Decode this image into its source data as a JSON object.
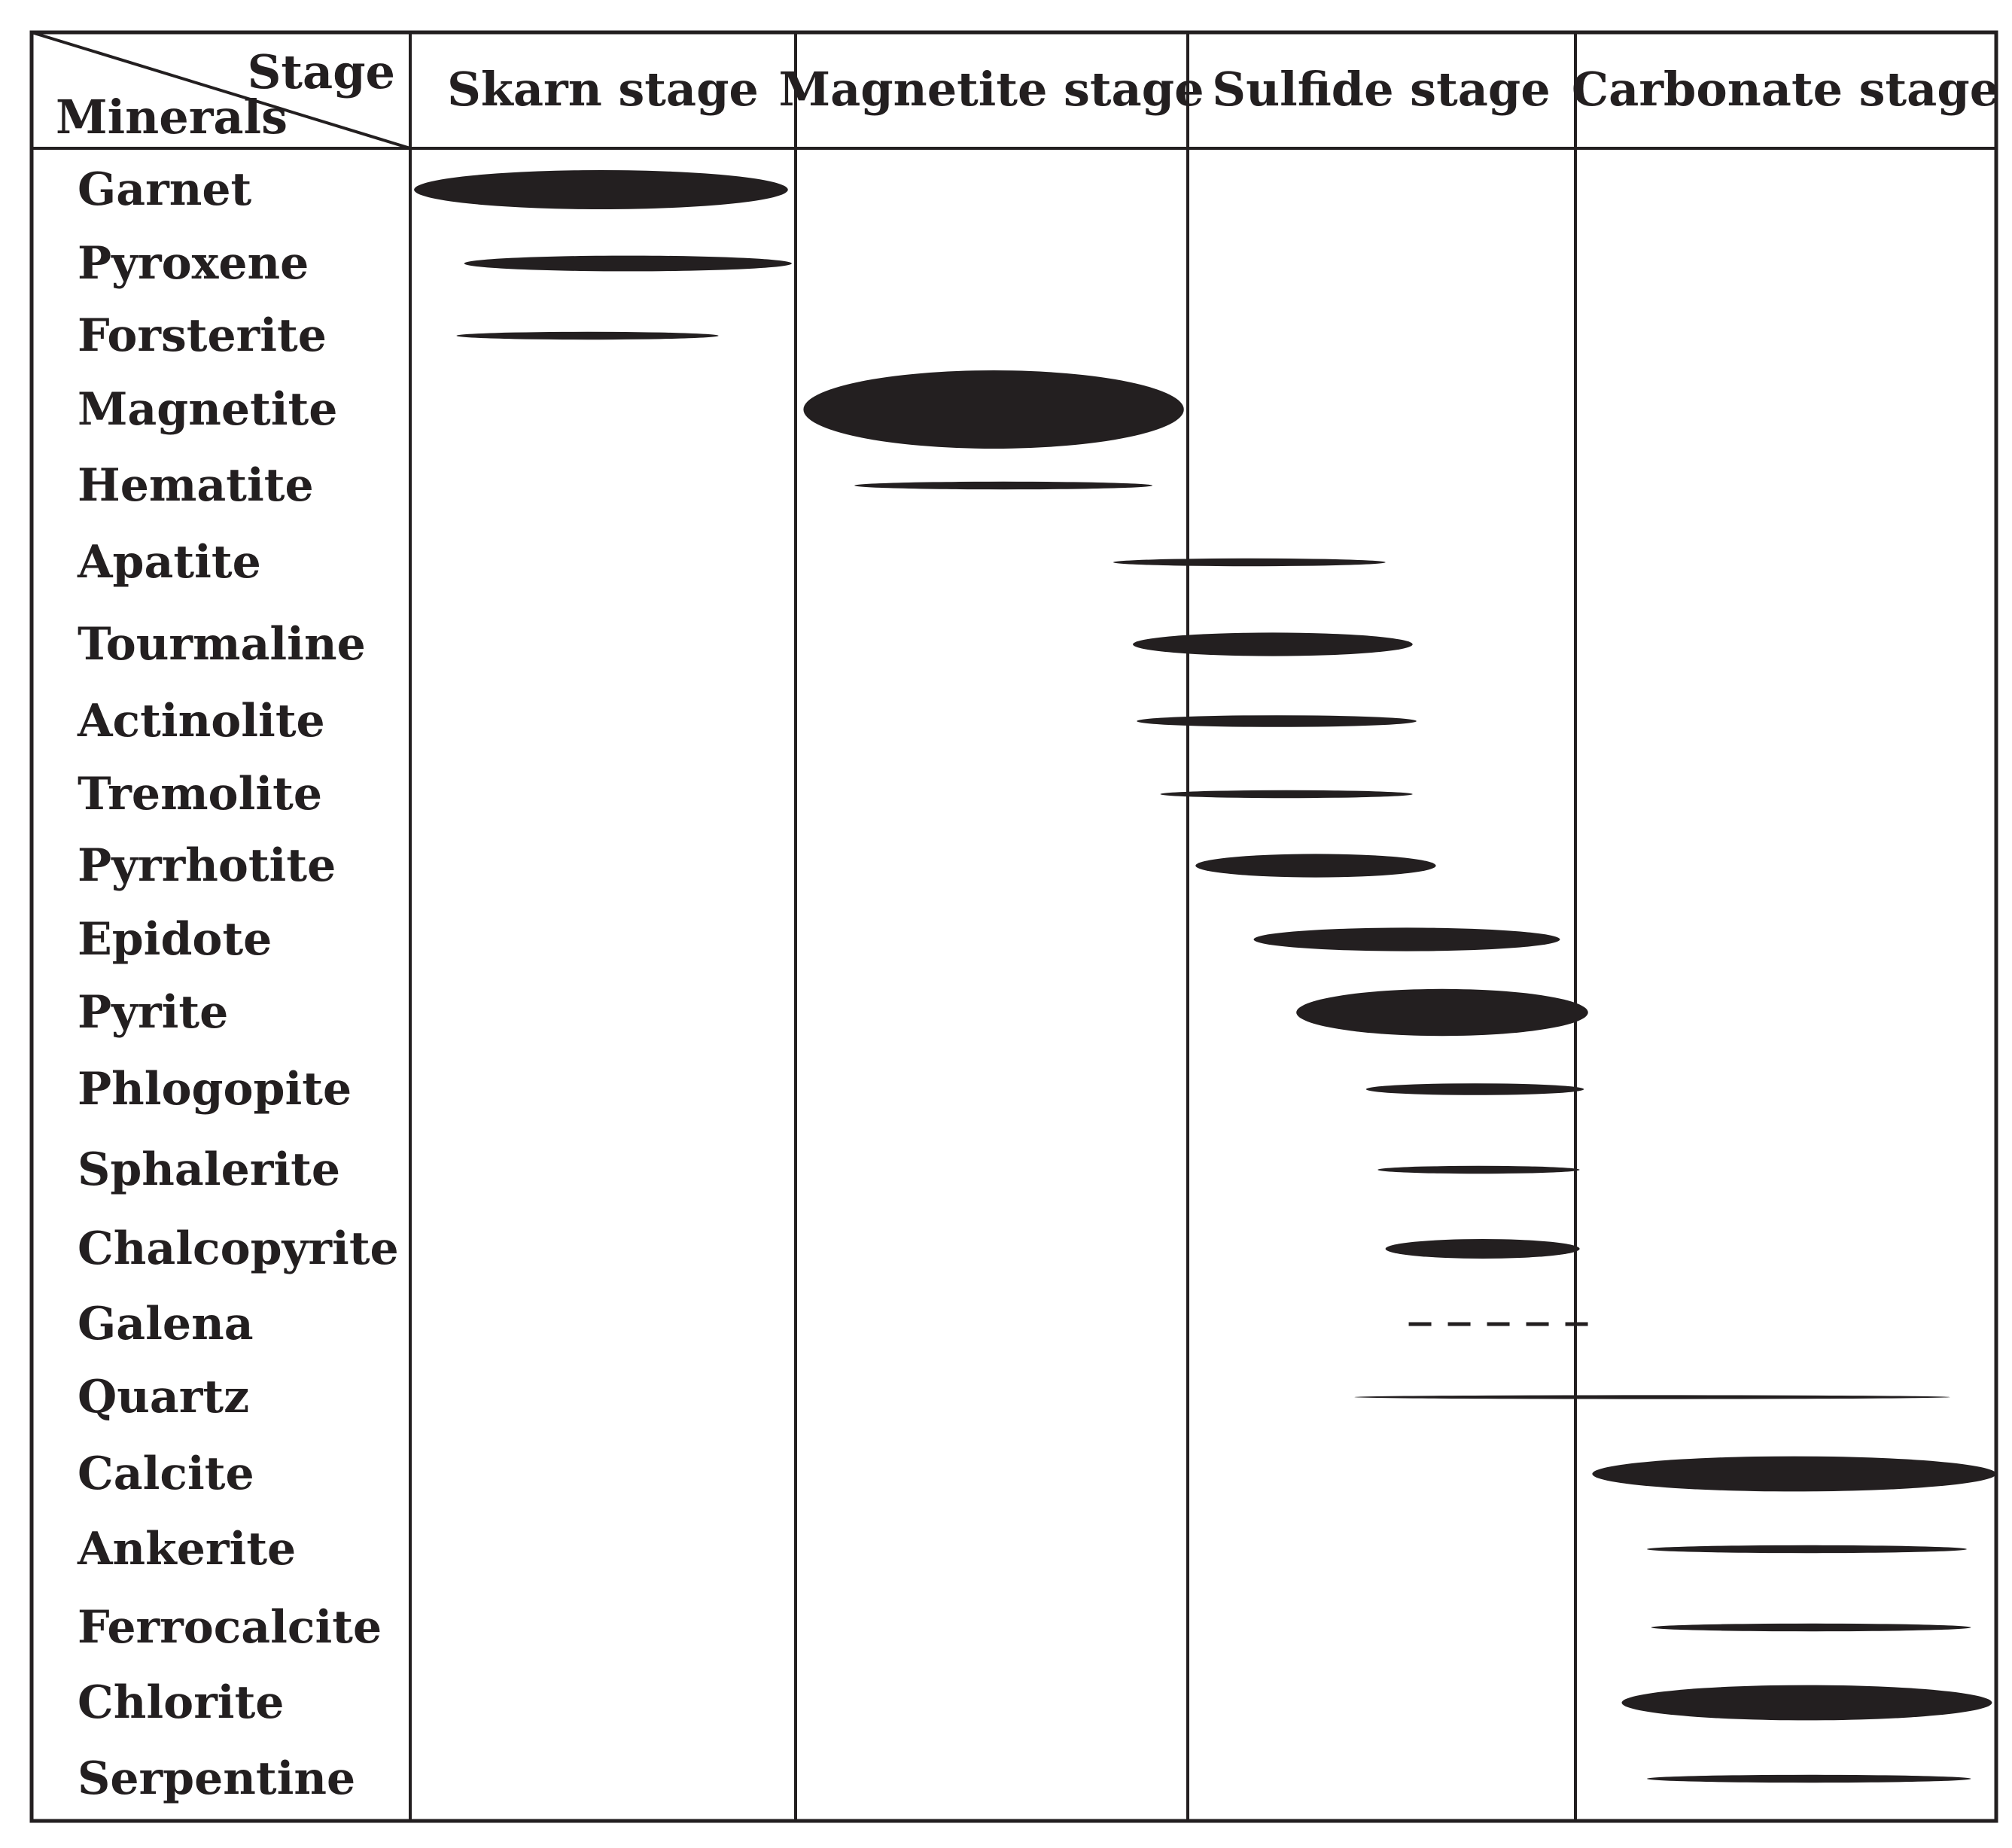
{
  "chart_data": {
    "type": "paragenetic-sequence",
    "corner_header": {
      "column": "Stage",
      "row": "Minerals"
    },
    "stages": [
      "Skarn stage",
      "Magnetite stage",
      "Sulfide stage",
      "Carbonate stage"
    ],
    "stage_axis": {
      "min": 0,
      "max": 4,
      "unit": "stage index"
    },
    "minerals": [
      {
        "name": "Garnet",
        "start": 0.01,
        "end": 0.98,
        "thickness": 5,
        "style": "solid"
      },
      {
        "name": "Pyroxene",
        "start": 0.14,
        "end": 0.99,
        "thickness": 2,
        "style": "solid"
      },
      {
        "name": "Forsterite",
        "start": 0.12,
        "end": 0.8,
        "thickness": 1,
        "style": "solid"
      },
      {
        "name": "Magnetite",
        "start": 1.02,
        "end": 1.99,
        "thickness": 10,
        "style": "solid"
      },
      {
        "name": "Hematite",
        "start": 1.15,
        "end": 1.91,
        "thickness": 1,
        "style": "solid"
      },
      {
        "name": "Apatite",
        "start": 1.81,
        "end": 2.51,
        "thickness": 1,
        "style": "solid"
      },
      {
        "name": "Tourmaline",
        "start": 1.86,
        "end": 2.58,
        "thickness": 3,
        "style": "solid"
      },
      {
        "name": "Actinolite",
        "start": 1.87,
        "end": 2.59,
        "thickness": 1.5,
        "style": "solid"
      },
      {
        "name": "Tremolite",
        "start": 1.93,
        "end": 2.58,
        "thickness": 1,
        "style": "solid"
      },
      {
        "name": "Pyrrhotite",
        "start": 2.02,
        "end": 2.64,
        "thickness": 3,
        "style": "solid"
      },
      {
        "name": "Epidote",
        "start": 2.17,
        "end": 2.96,
        "thickness": 3,
        "style": "solid"
      },
      {
        "name": "Pyrite",
        "start": 2.28,
        "end": 3.03,
        "thickness": 6,
        "style": "solid"
      },
      {
        "name": "Phlogopite",
        "start": 2.46,
        "end": 3.02,
        "thickness": 1.5,
        "style": "solid"
      },
      {
        "name": "Sphalerite",
        "start": 2.49,
        "end": 3.01,
        "thickness": 1,
        "style": "solid"
      },
      {
        "name": "Chalcopyrite",
        "start": 2.51,
        "end": 3.01,
        "thickness": 2.5,
        "style": "solid"
      },
      {
        "name": "Galena",
        "start": 2.57,
        "end": 3.03,
        "thickness": 1,
        "style": "dashed"
      },
      {
        "name": "Quartz",
        "start": 2.43,
        "end": 3.89,
        "thickness": 0.5,
        "style": "solid"
      },
      {
        "name": "Calcite",
        "start": 3.04,
        "end": 4.0,
        "thickness": 4.5,
        "style": "solid"
      },
      {
        "name": "Ankerite",
        "start": 3.17,
        "end": 3.93,
        "thickness": 1,
        "style": "solid"
      },
      {
        "name": "Ferrocalcite",
        "start": 3.18,
        "end": 3.94,
        "thickness": 1,
        "style": "solid"
      },
      {
        "name": "Chlorite",
        "start": 3.11,
        "end": 3.99,
        "thickness": 4.5,
        "style": "solid"
      },
      {
        "name": "Serpentine",
        "start": 3.17,
        "end": 3.94,
        "thickness": 1,
        "style": "solid"
      }
    ]
  }
}
